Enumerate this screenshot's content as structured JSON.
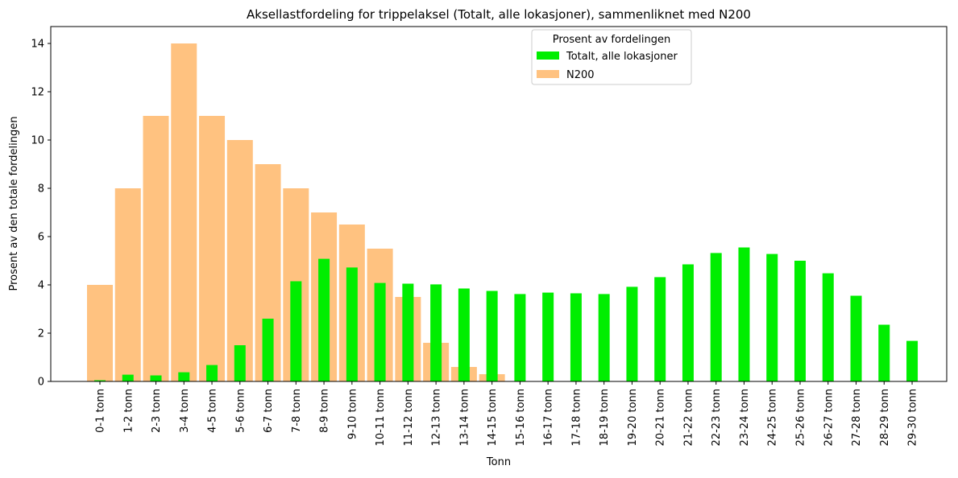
{
  "chart_data": {
    "type": "bar",
    "title": "Aksellastfordeling for trippelaksel (Totalt, alle lokasjoner), sammenliknet med N200",
    "xlabel": "Tonn",
    "ylabel": "Prosent av den totale fordelingen",
    "ylim": [
      0,
      14.7
    ],
    "yticks": [
      0,
      2,
      4,
      6,
      8,
      10,
      12,
      14
    ],
    "grid": false,
    "legend": {
      "title": "Prosent av fordelingen",
      "placement": "top-center"
    },
    "categories": [
      "0-1 tonn",
      "1-2 tonn",
      "2-3 tonn",
      "3-4 tonn",
      "4-5 tonn",
      "5-6 tonn",
      "6-7 tonn",
      "7-8 tonn",
      "8-9 tonn",
      "9-10 tonn",
      "10-11 tonn",
      "11-12 tonn",
      "12-13 tonn",
      "13-14 tonn",
      "14-15 tonn",
      "15-16 tonn",
      "16-17 tonn",
      "17-18 tonn",
      "18-19 tonn",
      "19-20 tonn",
      "20-21 tonn",
      "21-22 tonn",
      "22-23 tonn",
      "23-24 tonn",
      "24-25 tonn",
      "25-26 tonn",
      "26-27 tonn",
      "27-28 tonn",
      "28-29 tonn",
      "29-30 tonn"
    ],
    "series": [
      {
        "name": "Totalt, alle lokasjoner",
        "color": "#00ee00",
        "values": [
          0.05,
          0.28,
          0.25,
          0.38,
          0.68,
          1.5,
          2.6,
          4.15,
          5.08,
          4.72,
          4.08,
          4.05,
          4.02,
          3.85,
          3.75,
          3.62,
          3.68,
          3.65,
          3.62,
          3.92,
          4.32,
          4.85,
          5.32,
          5.55,
          5.28,
          5.0,
          4.48,
          3.55,
          2.35,
          1.68
        ]
      },
      {
        "name": "N200",
        "color": "#ffc280",
        "values": [
          4.0,
          8.0,
          11.0,
          14.0,
          11.0,
          10.0,
          9.0,
          8.0,
          7.0,
          6.5,
          5.5,
          3.5,
          1.6,
          0.6,
          0.3,
          0,
          0,
          0,
          0,
          0,
          0,
          0,
          0,
          0,
          0,
          0,
          0,
          0,
          0,
          0
        ]
      }
    ]
  }
}
